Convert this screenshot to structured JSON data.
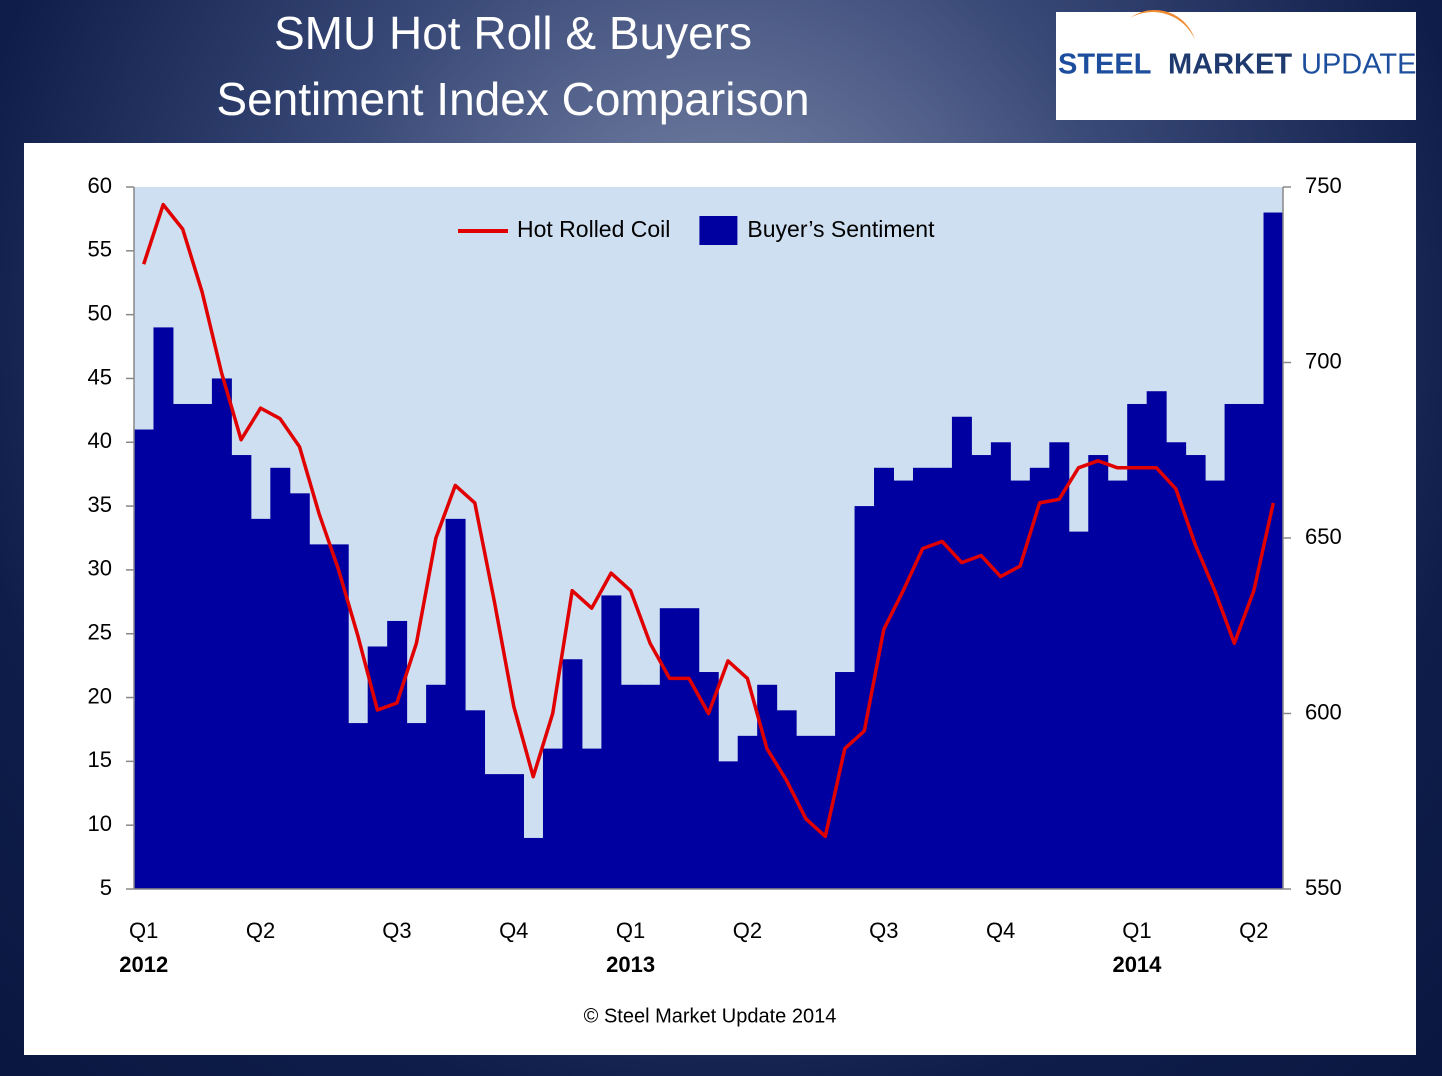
{
  "logo": [
    "STEEL",
    "MARKET",
    "UPDATE"
  ],
  "chart_data": {
    "type": "combo",
    "title_lines": [
      "SMU Hot Roll & Buyers",
      "Sentiment Index Comparison"
    ],
    "source": "© Steel Market Update 2014",
    "categories": [
      "Q1",
      null,
      null,
      null,
      null,
      null,
      "Q2",
      null,
      null,
      null,
      null,
      null,
      null,
      "Q3",
      null,
      null,
      null,
      null,
      null,
      "Q4",
      null,
      null,
      null,
      null,
      null,
      "Q1",
      null,
      null,
      null,
      null,
      null,
      "Q2",
      null,
      null,
      null,
      null,
      null,
      null,
      "Q3",
      null,
      null,
      null,
      null,
      null,
      "Q4",
      null,
      null,
      null,
      null,
      null,
      null,
      "Q1",
      null,
      null,
      null,
      null,
      null,
      "Q2",
      null
    ],
    "years": [
      "2012",
      null,
      null,
      null,
      null,
      null,
      null,
      null,
      null,
      null,
      null,
      null,
      null,
      null,
      null,
      null,
      null,
      null,
      null,
      null,
      null,
      null,
      null,
      null,
      null,
      "2013",
      null,
      null,
      null,
      null,
      null,
      null,
      null,
      null,
      null,
      null,
      null,
      null,
      null,
      null,
      null,
      null,
      null,
      null,
      null,
      null,
      null,
      null,
      null,
      null,
      null,
      "2014",
      null,
      null,
      null,
      null,
      null,
      null,
      null
    ],
    "series": [
      {
        "name": "Hot Rolled Coil",
        "type": "line",
        "axis": "y2",
        "color": "#e00000",
        "values": [
          728,
          745,
          738,
          720,
          697,
          678,
          687,
          684,
          676,
          657,
          641,
          622,
          601,
          603,
          620,
          650,
          665,
          660,
          632,
          602,
          582,
          600,
          635,
          630,
          640,
          635,
          620,
          610,
          610,
          600,
          615,
          610,
          590,
          581,
          570,
          565,
          590,
          595,
          624,
          635,
          647,
          649,
          643,
          645,
          639,
          642,
          660,
          661,
          670,
          672,
          670,
          670,
          670,
          664,
          648,
          635,
          620,
          635,
          660
        ]
      },
      {
        "name": "Buyer’s Sentiment",
        "type": "bar",
        "color": "#0000a0",
        "values": [
          41,
          49,
          43,
          43,
          45,
          39,
          34,
          38,
          36,
          32,
          32,
          18,
          24,
          26,
          18,
          21,
          34,
          19,
          14,
          14,
          9,
          16,
          23,
          16,
          28,
          21,
          21,
          27,
          27,
          22,
          15,
          17,
          21,
          19,
          17,
          17,
          22,
          35,
          38,
          37,
          38,
          38,
          42,
          39,
          40,
          37,
          38,
          40,
          33,
          39,
          37,
          43,
          44,
          40,
          39,
          37,
          43,
          43,
          58
        ]
      }
    ],
    "ylim": [
      5,
      60
    ],
    "yticks": [
      5,
      10,
      15,
      20,
      25,
      30,
      35,
      40,
      45,
      50,
      55,
      60
    ],
    "y2lim": [
      550,
      750
    ],
    "y2ticks": [
      550,
      600,
      650,
      700,
      750
    ],
    "plot_background": "#cfdff2"
  }
}
